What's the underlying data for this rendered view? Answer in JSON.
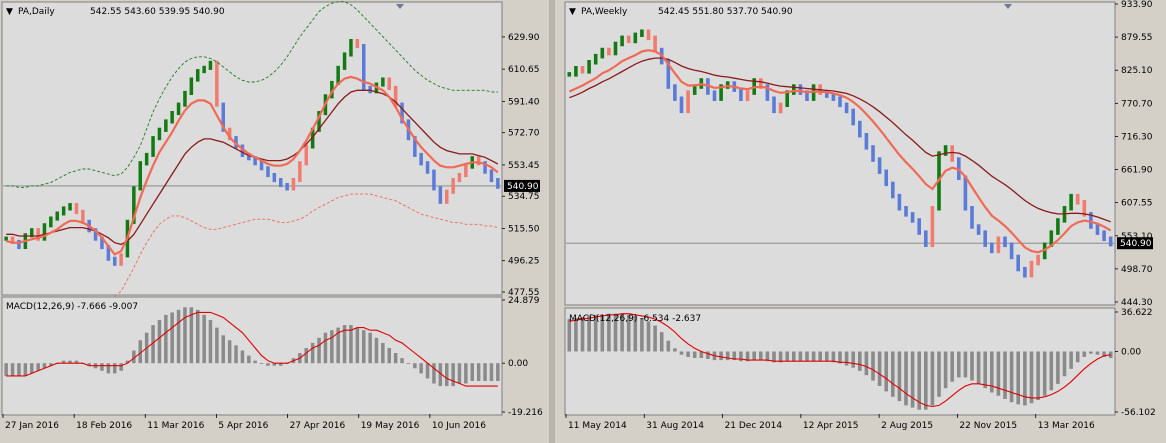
{
  "colors": {
    "background": "#dcdcdc",
    "bull_bar": "#127a12",
    "bear_bar": "#5b7bd9",
    "neutral_bar": "#f07c70",
    "ema_fast": "#f16a55",
    "ema_slow": "#8b1a1a",
    "envelope": "#1f7a1f",
    "envelope_lower": "#f16a55",
    "macd_hist": "#8a8a8a",
    "macd_signal": "#e00000",
    "price_line": "#808080"
  },
  "chart_data": [
    {
      "type": "bar",
      "panel": "price",
      "title": "PA,Daily",
      "ohlc_header": "542.55 543.60 539.95 540.90",
      "current_price": "540.90",
      "y_ticks": [
        "629.90",
        "610.65",
        "591.40",
        "572.70",
        "553.45",
        "534.75",
        "515.50",
        "496.25",
        "477.55"
      ],
      "ylim": [
        477.55,
        640
      ],
      "x_ticks": [
        "27 Jan 2016",
        "18 Feb 2016",
        "11 Mar 2016",
        "5 Apr 2016",
        "27 Apr 2016",
        "19 May 2016",
        "10 Jun 2016"
      ],
      "close": [
        510,
        508,
        505,
        512,
        515,
        510,
        518,
        522,
        525,
        528,
        530,
        526,
        520,
        515,
        510,
        505,
        498,
        495,
        500,
        520,
        540,
        555,
        560,
        570,
        575,
        580,
        585,
        590,
        597,
        605,
        610,
        612,
        615,
        590,
        575,
        570,
        565,
        560,
        558,
        555,
        552,
        548,
        545,
        542,
        540,
        545,
        555,
        565,
        575,
        585,
        595,
        603,
        612,
        620,
        628,
        625,
        600,
        598,
        602,
        605,
        600,
        590,
        580,
        570,
        560,
        555,
        550,
        540,
        532,
        538,
        545,
        548,
        553,
        558,
        555,
        550,
        545,
        541
      ],
      "ema_fast": [
        508,
        507,
        507,
        508,
        509,
        510,
        511,
        513,
        515,
        518,
        520,
        520,
        519,
        517,
        514,
        510,
        505,
        500,
        502,
        510,
        522,
        534,
        544,
        553,
        561,
        567,
        573,
        580,
        586,
        590,
        592,
        592,
        590,
        583,
        576,
        570,
        566,
        563,
        560,
        558,
        556,
        554,
        553,
        553,
        554,
        557,
        562,
        568,
        575,
        582,
        590,
        597,
        602,
        605,
        606,
        605,
        603,
        602,
        600,
        598,
        594,
        588,
        581,
        575,
        569,
        564,
        560,
        556,
        553,
        552,
        552,
        553,
        554,
        555,
        555,
        554,
        552,
        549
      ],
      "ema_slow": [
        512,
        512,
        511,
        511,
        511,
        511,
        512,
        513,
        514,
        515,
        516,
        516,
        516,
        515,
        514,
        512,
        510,
        507,
        506,
        508,
        512,
        518,
        524,
        530,
        536,
        542,
        548,
        554,
        560,
        564,
        567,
        569,
        569,
        568,
        567,
        565,
        563,
        561,
        559,
        558,
        557,
        556,
        556,
        556,
        557,
        559,
        562,
        566,
        570,
        575,
        580,
        585,
        590,
        594,
        597,
        598,
        598,
        598,
        597,
        596,
        594,
        591,
        587,
        583,
        579,
        575,
        571,
        567,
        564,
        562,
        561,
        560,
        560,
        560,
        559,
        558,
        556,
        554
      ],
      "envelope_upper": [
        541,
        541,
        540,
        540,
        541,
        541,
        542,
        543,
        545,
        547,
        549,
        550,
        551,
        551,
        550,
        549,
        548,
        547,
        548,
        552,
        558,
        565,
        575,
        585,
        593,
        600,
        606,
        611,
        615,
        617,
        618,
        618,
        617,
        615,
        612,
        609,
        606,
        604,
        603,
        603,
        604,
        606,
        609,
        613,
        618,
        624,
        630,
        635,
        640,
        645,
        648,
        650,
        651,
        651,
        649,
        646,
        642,
        638,
        634,
        630,
        626,
        622,
        618,
        614,
        610,
        607,
        604,
        602,
        600,
        599,
        598,
        598,
        598,
        598,
        598,
        598,
        597,
        597
      ],
      "envelope_lower": [
        null,
        null,
        null,
        null,
        null,
        null,
        null,
        null,
        null,
        null,
        null,
        null,
        null,
        null,
        null,
        null,
        null,
        475,
        478,
        485,
        492,
        500,
        507,
        513,
        518,
        521,
        523,
        523,
        522,
        520,
        518,
        516,
        515,
        515,
        516,
        517,
        518,
        519,
        520,
        521,
        521,
        521,
        520,
        519,
        519,
        520,
        521,
        523,
        526,
        528,
        530,
        532,
        534,
        535,
        536,
        536,
        536,
        536,
        535,
        534,
        533,
        532,
        530,
        528,
        526,
        524,
        523,
        522,
        521,
        520,
        519,
        519,
        518,
        518,
        518,
        517,
        517,
        516
      ]
    },
    {
      "type": "bar",
      "panel": "macd",
      "title": "MACD(12,26,9) -7.666 -9.007",
      "y_ticks": [
        "24.879",
        "0.00",
        "-19.216"
      ],
      "ylim": [
        -19.216,
        24.879
      ],
      "histogram": [
        -5,
        -5,
        -5,
        -5,
        -4,
        -3,
        -2,
        -1,
        0,
        1,
        1,
        1,
        0,
        -1,
        -2,
        -3,
        -4,
        -4,
        -3,
        1,
        5,
        9,
        12,
        15,
        17,
        19,
        20,
        21,
        22,
        22,
        21,
        19,
        17,
        14,
        11,
        9,
        7,
        5,
        3,
        1,
        0,
        -1,
        -1,
        -1,
        0,
        2,
        4,
        6,
        8,
        10,
        12,
        13,
        14,
        15,
        15,
        14,
        13,
        12,
        10,
        8,
        6,
        4,
        2,
        0,
        -2,
        -4,
        -6,
        -8,
        -9,
        -9,
        -9,
        -8,
        -8,
        -7,
        -7,
        -7,
        -7,
        -7
      ],
      "signal": [
        -5,
        -5,
        -5,
        -5,
        -4,
        -3,
        -2,
        -1,
        0,
        0,
        0,
        0,
        0,
        -1,
        -1,
        -1,
        -1,
        -1,
        -1,
        0,
        2,
        4,
        6,
        8,
        10,
        12,
        14,
        16,
        18,
        19,
        20,
        20,
        20,
        19,
        18,
        16,
        14,
        12,
        9,
        6,
        3,
        1,
        0,
        0,
        0,
        1,
        2,
        4,
        6,
        7,
        9,
        10,
        12,
        13,
        13,
        14,
        14,
        13,
        13,
        12,
        11,
        9,
        8,
        6,
        4,
        2,
        0,
        -2,
        -4,
        -6,
        -7,
        -8,
        -9,
        -9,
        -9,
        -9,
        -9,
        -9
      ]
    },
    {
      "type": "bar",
      "panel": "price",
      "title": "PA,Weekly",
      "ohlc_header": "542.45 551.80 537.70 540.90",
      "current_price": "540.90",
      "y_ticks": [
        "933.90",
        "879.55",
        "825.10",
        "770.70",
        "716.30",
        "661.90",
        "607.55",
        "553.10",
        "498.70",
        "444.30"
      ],
      "ylim": [
        444.3,
        933.9
      ],
      "x_ticks": [
        "11 May 2014",
        "31 Aug 2014",
        "21 Dec 2014",
        "12 Apr 2015",
        "2 Aug 2015",
        "22 Nov 2015",
        "13 Mar 2016"
      ],
      "close": [
        820,
        830,
        825,
        840,
        850,
        860,
        855,
        870,
        880,
        875,
        885,
        890,
        880,
        860,
        840,
        800,
        780,
        760,
        790,
        800,
        810,
        790,
        780,
        800,
        805,
        795,
        780,
        790,
        810,
        800,
        780,
        760,
        770,
        790,
        800,
        790,
        780,
        800,
        790,
        785,
        780,
        770,
        760,
        740,
        720,
        700,
        680,
        660,
        640,
        620,
        600,
        590,
        580,
        560,
        540,
        600,
        690,
        700,
        680,
        650,
        600,
        570,
        560,
        540,
        530,
        550,
        540,
        520,
        500,
        490,
        510,
        520,
        540,
        560,
        580,
        600,
        620,
        610,
        590,
        570,
        560,
        550,
        541
      ],
      "ema_fast": [
        790,
        795,
        800,
        806,
        812,
        820,
        825,
        832,
        840,
        845,
        850,
        856,
        858,
        856,
        850,
        835,
        820,
        806,
        800,
        800,
        802,
        800,
        796,
        797,
        799,
        798,
        795,
        794,
        797,
        798,
        796,
        791,
        788,
        789,
        791,
        791,
        789,
        790,
        790,
        789,
        787,
        784,
        780,
        773,
        764,
        753,
        741,
        728,
        714,
        700,
        686,
        674,
        663,
        651,
        638,
        630,
        645,
        660,
        665,
        662,
        650,
        633,
        616,
        600,
        586,
        578,
        569,
        558,
        546,
        534,
        528,
        526,
        530,
        537,
        546,
        557,
        569,
        575,
        578,
        576,
        573,
        568,
        562
      ],
      "ema_slow": [
        780,
        784,
        789,
        795,
        800,
        806,
        811,
        817,
        823,
        829,
        835,
        840,
        843,
        845,
        845,
        843,
        838,
        832,
        828,
        825,
        823,
        820,
        817,
        815,
        814,
        812,
        810,
        808,
        807,
        806,
        804,
        801,
        799,
        798,
        797,
        796,
        795,
        794,
        793,
        792,
        791,
        789,
        787,
        783,
        778,
        772,
        765,
        757,
        748,
        739,
        729,
        719,
        710,
        700,
        690,
        684,
        686,
        689,
        690,
        689,
        684,
        677,
        669,
        660,
        651,
        644,
        637,
        629,
        620,
        611,
        604,
        598,
        594,
        591,
        589,
        589,
        590,
        590,
        589,
        587,
        584,
        580,
        576
      ]
    },
    {
      "type": "bar",
      "panel": "macd",
      "title": "MACD(12,26,9) -6.534 -2.637",
      "y_ticks": [
        "36.622",
        "0.00",
        "-56.102"
      ],
      "ylim": [
        -56.102,
        36.622
      ],
      "histogram": [
        30,
        31,
        32,
        33,
        34,
        34,
        35,
        35,
        35,
        34,
        33,
        31,
        28,
        24,
        18,
        10,
        3,
        -3,
        -5,
        -6,
        -6,
        -7,
        -8,
        -8,
        -8,
        -8,
        -9,
        -9,
        -8,
        -8,
        -9,
        -10,
        -10,
        -9,
        -9,
        -9,
        -9,
        -9,
        -9,
        -9,
        -10,
        -11,
        -13,
        -15,
        -18,
        -22,
        -27,
        -32,
        -37,
        -42,
        -46,
        -50,
        -52,
        -54,
        -54,
        -50,
        -42,
        -34,
        -28,
        -24,
        -24,
        -27,
        -30,
        -34,
        -38,
        -41,
        -44,
        -47,
        -49,
        -50,
        -48,
        -45,
        -41,
        -36,
        -30,
        -23,
        -16,
        -10,
        -5,
        -2,
        -3,
        -5,
        -6
      ],
      "signal": [
        28,
        29,
        30,
        31,
        32,
        33,
        34,
        34,
        35,
        35,
        34,
        33,
        32,
        30,
        27,
        23,
        18,
        12,
        7,
        3,
        0,
        -2,
        -4,
        -5,
        -6,
        -7,
        -7,
        -8,
        -8,
        -8,
        -8,
        -9,
        -9,
        -9,
        -9,
        -9,
        -9,
        -9,
        -9,
        -9,
        -9,
        -10,
        -10,
        -11,
        -12,
        -14,
        -17,
        -21,
        -25,
        -30,
        -34,
        -39,
        -43,
        -47,
        -50,
        -51,
        -50,
        -46,
        -41,
        -36,
        -32,
        -30,
        -30,
        -31,
        -32,
        -34,
        -36,
        -38,
        -40,
        -42,
        -43,
        -43,
        -42,
        -40,
        -37,
        -33,
        -28,
        -22,
        -16,
        -11,
        -7,
        -4,
        -3
      ]
    }
  ]
}
